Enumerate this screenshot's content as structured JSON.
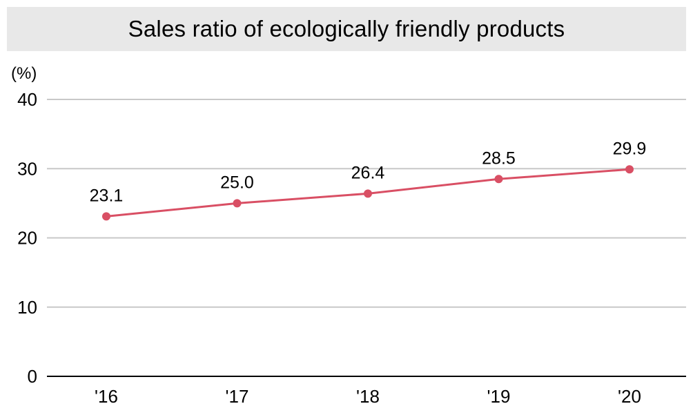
{
  "chart_data": {
    "type": "line",
    "title": "Sales ratio of ecologically friendly products",
    "ylabel": "(%)",
    "xlabel": "",
    "categories": [
      "'16",
      "'17",
      "'18",
      "'19",
      "'20"
    ],
    "series": [
      {
        "values": [
          23.1,
          25.0,
          26.4,
          28.5,
          29.9
        ]
      }
    ],
    "data_labels": [
      "23.1",
      "25.0",
      "26.4",
      "28.5",
      "29.9"
    ],
    "ylim": [
      0,
      40
    ],
    "yticks": [
      0,
      10,
      20,
      30,
      40
    ],
    "grid": true,
    "colors": {
      "line": "#d94f64",
      "grid": "#c8c8c8",
      "axis": "#000000",
      "title_bg": "#e8e8e8"
    }
  }
}
